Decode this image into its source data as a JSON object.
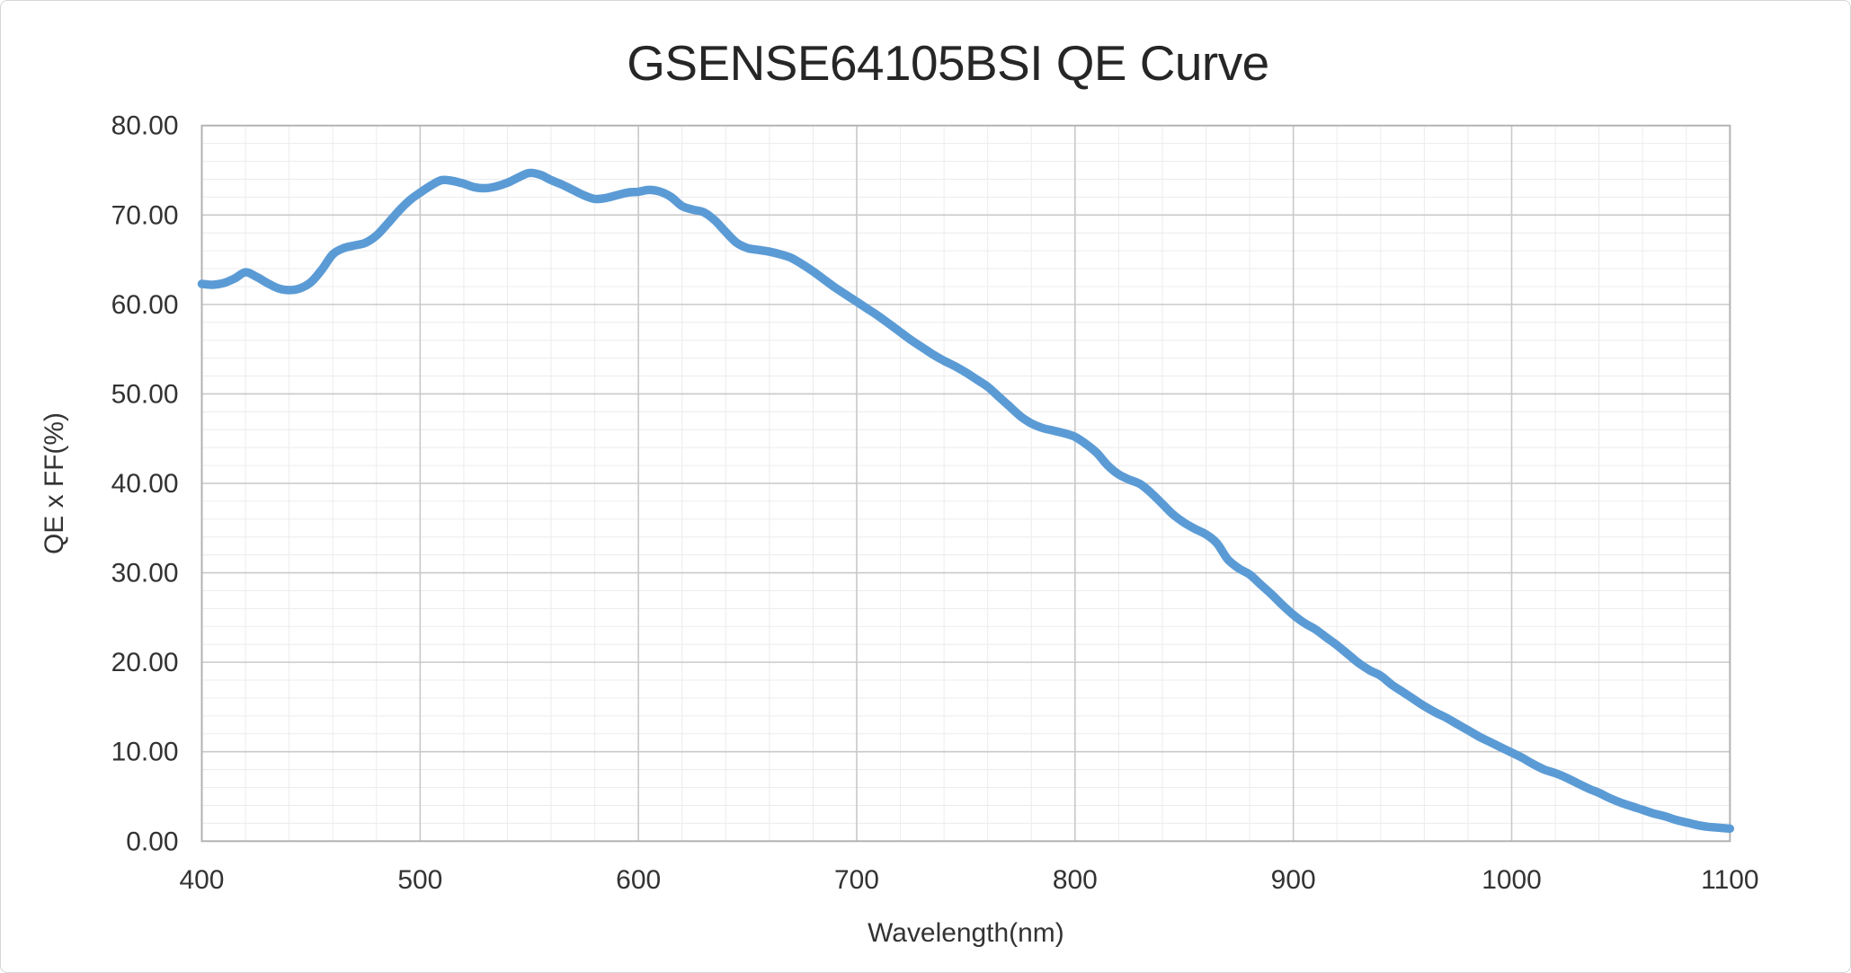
{
  "window": {
    "background": "#ffffff",
    "border_color": "#d6d6d6"
  },
  "chart_data": {
    "type": "line",
    "title": "GSENSE64105BSI QE Curve",
    "xlabel": "Wavelength(nm)",
    "ylabel": "QE x FF(%)",
    "xlim": [
      400,
      1100
    ],
    "ylim": [
      0,
      80
    ],
    "x_major_step": 100,
    "x_minor_step": 20,
    "y_major_step": 10,
    "y_minor_step": 2,
    "grid": true,
    "legend_position": "none",
    "x_tick_labels": [
      "400",
      "500",
      "600",
      "700",
      "800",
      "900",
      "1000",
      "1100"
    ],
    "y_tick_labels": [
      "0.00",
      "10.00",
      "20.00",
      "30.00",
      "40.00",
      "50.00",
      "60.00",
      "70.00",
      "80.00"
    ],
    "series": [
      {
        "name": "QE x FF",
        "x_start": 400,
        "x_step": 5,
        "values": [
          62.3,
          62.2,
          62.4,
          62.9,
          63.6,
          63.1,
          62.4,
          61.8,
          61.6,
          61.8,
          62.5,
          63.9,
          65.6,
          66.3,
          66.6,
          66.9,
          67.7,
          69.0,
          70.4,
          71.6,
          72.5,
          73.3,
          73.9,
          73.8,
          73.5,
          73.1,
          73.0,
          73.2,
          73.6,
          74.2,
          74.7,
          74.5,
          73.9,
          73.4,
          72.8,
          72.2,
          71.8,
          71.9,
          72.2,
          72.5,
          72.6,
          72.8,
          72.6,
          72.0,
          71.0,
          70.6,
          70.3,
          69.4,
          68.1,
          66.9,
          66.3,
          66.1,
          65.9,
          65.6,
          65.2,
          64.5,
          63.7,
          62.8,
          61.9,
          61.1,
          60.3,
          59.5,
          58.7,
          57.8,
          56.9,
          56.0,
          55.2,
          54.4,
          53.7,
          53.1,
          52.4,
          51.6,
          50.8,
          49.7,
          48.6,
          47.5,
          46.7,
          46.2,
          45.9,
          45.6,
          45.2,
          44.4,
          43.4,
          42.0,
          41.0,
          40.4,
          39.9,
          38.9,
          37.7,
          36.5,
          35.6,
          34.9,
          34.3,
          33.3,
          31.5,
          30.5,
          29.8,
          28.7,
          27.6,
          26.4,
          25.3,
          24.4,
          23.7,
          22.8,
          21.9,
          20.9,
          19.9,
          19.1,
          18.5,
          17.5,
          16.7,
          15.9,
          15.1,
          14.4,
          13.8,
          13.1,
          12.4,
          11.7,
          11.1,
          10.5,
          9.9,
          9.3,
          8.6,
          8.0,
          7.6,
          7.1,
          6.5,
          5.9,
          5.4,
          4.8,
          4.3,
          3.9,
          3.5,
          3.1,
          2.8,
          2.4,
          2.1,
          1.8,
          1.6,
          1.5,
          1.4
        ]
      }
    ],
    "colors": {
      "line": "#5B9BD5",
      "major_grid": "#c9c9c9",
      "minor_grid": "#ececec",
      "plot_border": "#b3b3b3",
      "text": "#333333",
      "title_text": "#262626"
    }
  }
}
